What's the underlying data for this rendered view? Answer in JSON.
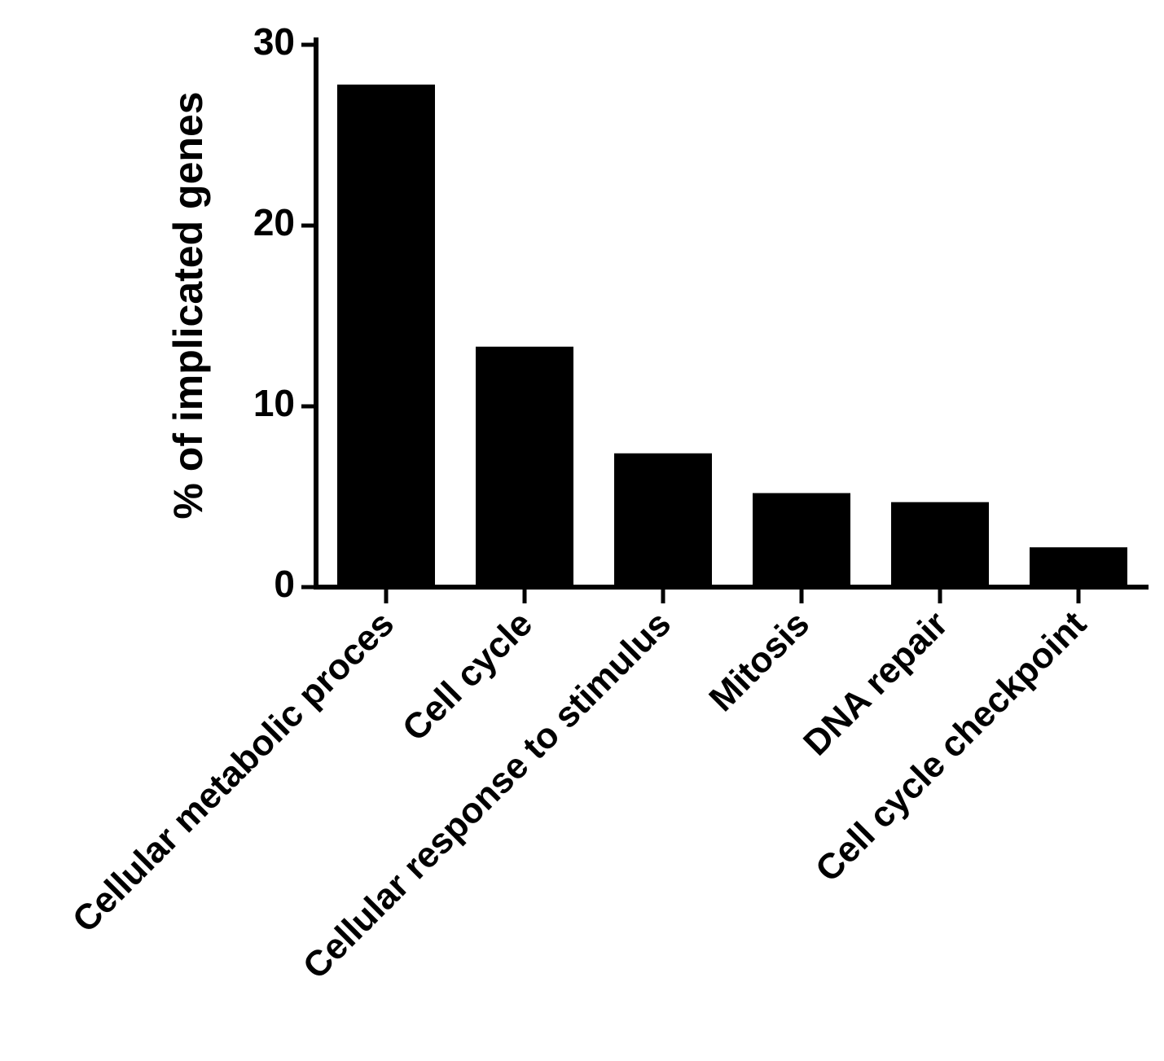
{
  "chart_data": {
    "type": "bar",
    "title": "",
    "xlabel": "",
    "ylabel": "% of implicated genes",
    "categories": [
      "Cellular metabolic proces",
      "Cell cycle",
      "Cellular response to stimulus",
      "Mitosis",
      "DNA repair",
      "Cell cycle checkpoint"
    ],
    "values": [
      27.8,
      13.3,
      7.4,
      5.2,
      4.7,
      2.2
    ],
    "ylim": [
      0,
      30
    ],
    "yticks": [
      0,
      10,
      20,
      30
    ],
    "grid": false,
    "legend": "none",
    "colors": {
      "bar": "#000000",
      "axis": "#000000"
    }
  }
}
